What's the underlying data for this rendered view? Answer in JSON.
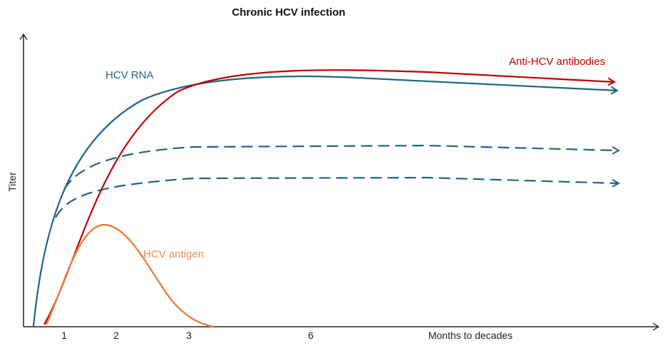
{
  "title": "Chronic HCV infection",
  "y_axis_label": "Titer",
  "x_axis_label": "Months to decades",
  "x_ticks": [
    "1",
    "2",
    "3",
    "6"
  ],
  "curves": {
    "hcv_rna": {
      "label": "HCV RNA",
      "color": "#1f6487"
    },
    "anti_hcv": {
      "label": "Anti-HCV antibodies",
      "color": "#c00000"
    },
    "hcv_antigen": {
      "label": "HCV antigen",
      "color": "#ee7d3a"
    }
  }
}
